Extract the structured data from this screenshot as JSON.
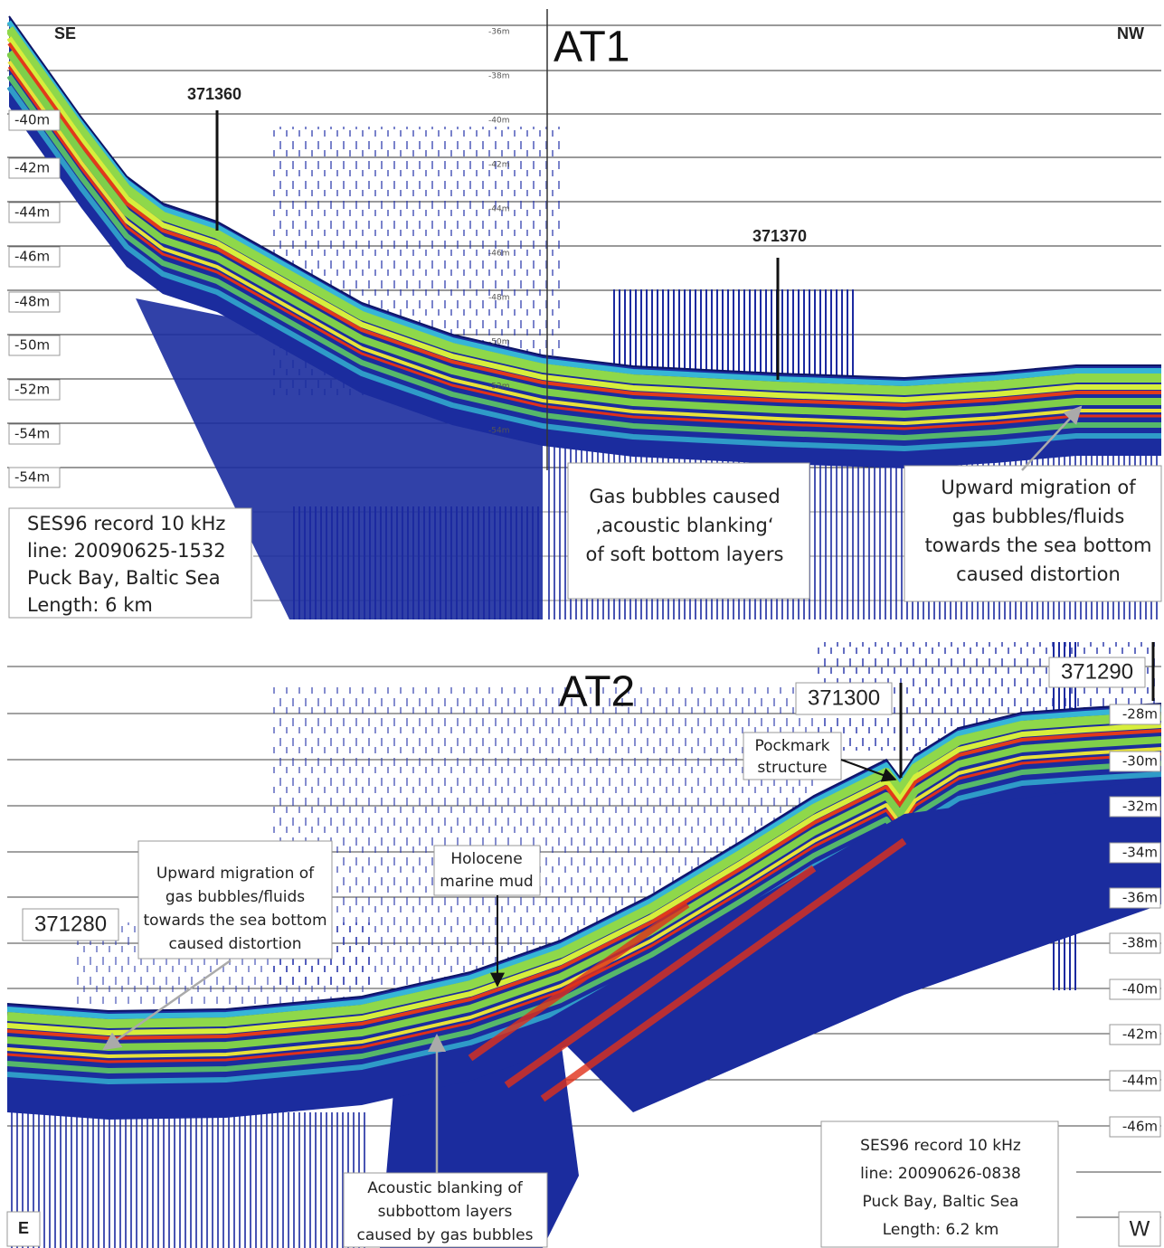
{
  "panels": [
    {
      "title": "AT1",
      "left_direction": "SE",
      "right_direction": "NW",
      "depth_labels": [
        "-40m",
        "-42m",
        "-44m",
        "-46m",
        "-48m",
        "-50m",
        "-52m",
        "-54m",
        "-54m"
      ],
      "inner_depth_labels": [
        "-36m",
        "-38m",
        "-40m",
        "-42m",
        "-44m",
        "-46m",
        "-48m",
        "-50m",
        "-52m",
        "-54m"
      ],
      "markers": [
        "371360",
        "371370"
      ],
      "annotations": [
        [
          "Gas bubbles caused",
          "‚acoustic blanking‘",
          "of soft bottom layers"
        ],
        [
          "Upward migration of",
          "gas bubbles/fluids",
          "towards the sea bottom",
          "caused distortion"
        ]
      ],
      "record_info": [
        "SES96 record 10 kHz",
        "line: 20090625-1532",
        "Puck Bay, Baltic Sea",
        "Length: 6 km"
      ]
    },
    {
      "title": "AT2",
      "left_direction": "E",
      "right_direction": "W",
      "depth_labels": [
        "-28m",
        "-30m",
        "-32m",
        "-34m",
        "-36m",
        "-38m",
        "-40m",
        "-42m",
        "-44m",
        "-46m"
      ],
      "markers": [
        "371300",
        "371290",
        "371280"
      ],
      "annotations": [
        [
          "Pockmark",
          "structure"
        ],
        [
          "Holocene",
          "marine mud"
        ],
        [
          "Upward migration of",
          "gas bubbles/fluids",
          "towards the sea bottom",
          "caused distortion"
        ],
        [
          "Acoustic blanking of",
          "subbottom layers",
          "caused by gas bubbles"
        ]
      ],
      "record_info": [
        "SES96 record 10 kHz",
        "line: 20090626-0838",
        "Puck Bay, Baltic Sea",
        "Length: 6.2 km"
      ]
    }
  ]
}
